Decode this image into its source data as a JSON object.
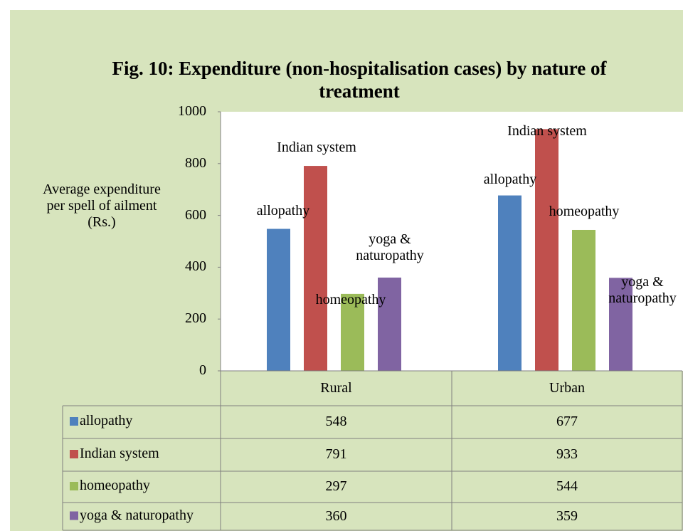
{
  "chart_data": {
    "type": "bar",
    "title": "Fig. 10: Expenditure (non-hospitalisation cases) by nature of treatment",
    "y_axis_label": "Average expenditure per spell of ailment (Rs.)",
    "categories": [
      "Rural",
      "Urban"
    ],
    "series": [
      {
        "name": "allopathy",
        "color": "#4f81bd",
        "values": [
          548,
          677
        ]
      },
      {
        "name": "Indian system",
        "color": "#c0504d",
        "values": [
          791,
          933
        ]
      },
      {
        "name": "homeopathy",
        "color": "#9bbb59",
        "values": [
          297,
          544
        ]
      },
      {
        "name": "yoga & naturopathy",
        "color": "#8064a2",
        "values": [
          360,
          359
        ]
      }
    ],
    "ylim": [
      0,
      1000
    ],
    "yticks": [
      0,
      200,
      400,
      600,
      800,
      1000
    ],
    "data_table": true
  }
}
